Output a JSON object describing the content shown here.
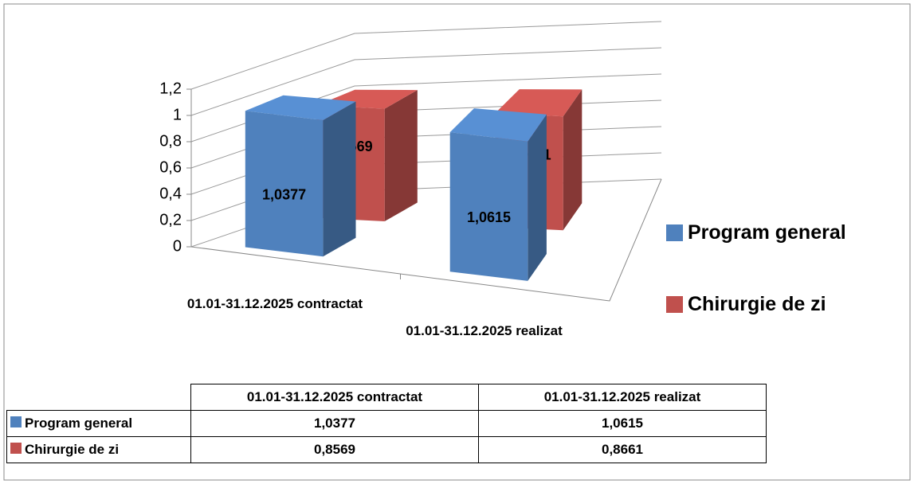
{
  "chart_data": {
    "type": "bar3d",
    "categories": [
      "01.01-31.12.2025 contractat",
      "01.01-31.12.2025 realizat"
    ],
    "series": [
      {
        "name": "Program general",
        "color": "#4f81bd",
        "values": [
          1.0377,
          1.0615
        ],
        "value_labels": [
          "1,0377",
          "1,0615"
        ]
      },
      {
        "name": "Chirurgie de zi",
        "color": "#c0504d",
        "values": [
          0.8569,
          0.8661
        ],
        "value_labels": [
          "0,8569",
          "0,8661"
        ]
      }
    ],
    "ylim": [
      0,
      1.2
    ],
    "yticks": [
      0,
      {
        "value": 0.2,
        "label": "0,2"
      },
      {
        "value": 0.4,
        "label": "0,4"
      },
      {
        "value": 0.6,
        "label": "0,6"
      },
      {
        "value": 0.8,
        "label": "0,8"
      },
      1,
      {
        "value": 1.2,
        "label": "1,2"
      }
    ],
    "grid": true,
    "legend": "right",
    "data_table": true
  }
}
